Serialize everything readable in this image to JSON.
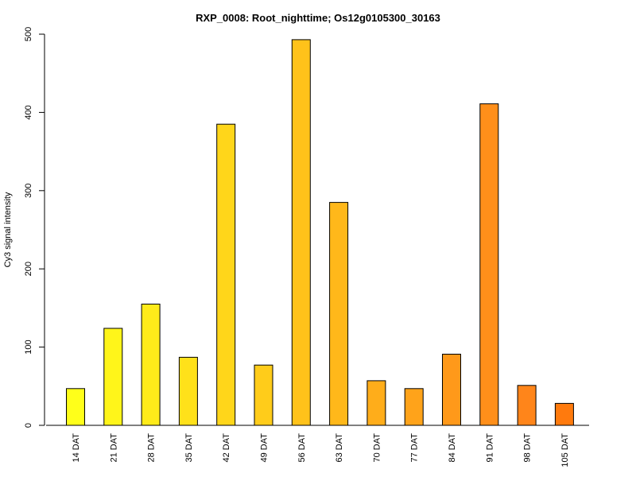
{
  "chart_data": {
    "type": "bar",
    "title": "RXP_0008: Root_nighttime; Os12g0105300_30163",
    "xlabel": "",
    "ylabel": "Cy3 signal intensity",
    "ylim": [
      0,
      500
    ],
    "yticks": [
      0,
      100,
      200,
      300,
      400,
      500
    ],
    "categories": [
      "14 DAT",
      "21 DAT",
      "28 DAT",
      "35 DAT",
      "42 DAT",
      "49 DAT",
      "56 DAT",
      "63 DAT",
      "70 DAT",
      "77 DAT",
      "84 DAT",
      "91 DAT",
      "98 DAT",
      "105 DAT"
    ],
    "values": [
      47,
      124,
      155,
      87,
      385,
      77,
      493,
      285,
      57,
      47,
      91,
      411,
      51,
      28
    ],
    "colors": [
      "#ffff1a",
      "#fff51a",
      "#ffeb1a",
      "#ffe11a",
      "#ffd61a",
      "#ffcc1a",
      "#ffc21a",
      "#ffb81a",
      "#ffad1a",
      "#ffa31a",
      "#ff991a",
      "#ff8f1a",
      "#ff851a",
      "#ff7a0d"
    ],
    "grid": false,
    "legend": "none"
  }
}
